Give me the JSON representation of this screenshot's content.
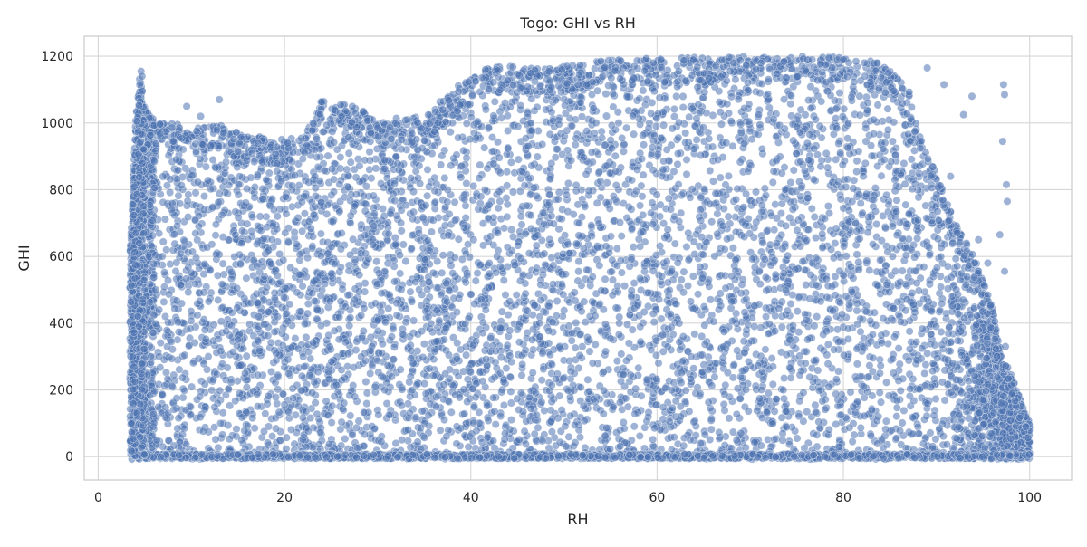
{
  "chart_data": {
    "type": "scatter",
    "title": "Togo: GHI vs RH",
    "xlabel": "RH",
    "ylabel": "GHI",
    "xlim": [
      -1.5,
      104.5
    ],
    "ylim": [
      -70,
      1260
    ],
    "x_ticks": [
      0,
      20,
      40,
      60,
      80,
      100
    ],
    "y_ticks": [
      0,
      200,
      400,
      600,
      800,
      1000,
      1200
    ],
    "grid": true,
    "legend": "none",
    "marker_color": "#4c72b0",
    "marker_edge_color": "#ffffff",
    "marker_alpha": 0.55,
    "envelope": [
      [
        3.5,
        660
      ],
      [
        4,
        1000
      ],
      [
        4.5,
        1150
      ],
      [
        5,
        1050
      ],
      [
        6,
        1010
      ],
      [
        8,
        1000
      ],
      [
        10,
        990
      ],
      [
        13,
        1000
      ],
      [
        15,
        970
      ],
      [
        20,
        950
      ],
      [
        22,
        960
      ],
      [
        24,
        1075
      ],
      [
        27,
        1060
      ],
      [
        30,
        1010
      ],
      [
        35,
        1020
      ],
      [
        38,
        1100
      ],
      [
        42,
        1170
      ],
      [
        46,
        1170
      ],
      [
        50,
        1170
      ],
      [
        55,
        1190
      ],
      [
        60,
        1195
      ],
      [
        70,
        1200
      ],
      [
        80,
        1200
      ],
      [
        83,
        1190
      ],
      [
        85,
        1160
      ],
      [
        87,
        1100
      ],
      [
        88,
        1000
      ],
      [
        89,
        900
      ],
      [
        90,
        850
      ],
      [
        92,
        700
      ],
      [
        94,
        600
      ],
      [
        96,
        450
      ],
      [
        97,
        300
      ],
      [
        98,
        250
      ],
      [
        99,
        170
      ],
      [
        100,
        100
      ]
    ],
    "outliers": [
      {
        "x": 97.2,
        "y": 1115
      },
      {
        "x": 97.3,
        "y": 1085
      },
      {
        "x": 97.1,
        "y": 945
      },
      {
        "x": 97.5,
        "y": 815
      },
      {
        "x": 97.6,
        "y": 765
      },
      {
        "x": 93.8,
        "y": 1080
      },
      {
        "x": 90.8,
        "y": 1115
      },
      {
        "x": 92.9,
        "y": 1025
      },
      {
        "x": 89.0,
        "y": 1165
      },
      {
        "x": 96.8,
        "y": 665
      },
      {
        "x": 97.3,
        "y": 555
      },
      {
        "x": 97.4,
        "y": 330
      },
      {
        "x": 95.5,
        "y": 580
      },
      {
        "x": 94.5,
        "y": 650
      },
      {
        "x": 91.5,
        "y": 840
      },
      {
        "x": 4.6,
        "y": 1155
      },
      {
        "x": 4.7,
        "y": 1140
      },
      {
        "x": 13.0,
        "y": 1070
      },
      {
        "x": 9.5,
        "y": 1050
      },
      {
        "x": 11.0,
        "y": 1020
      }
    ]
  }
}
